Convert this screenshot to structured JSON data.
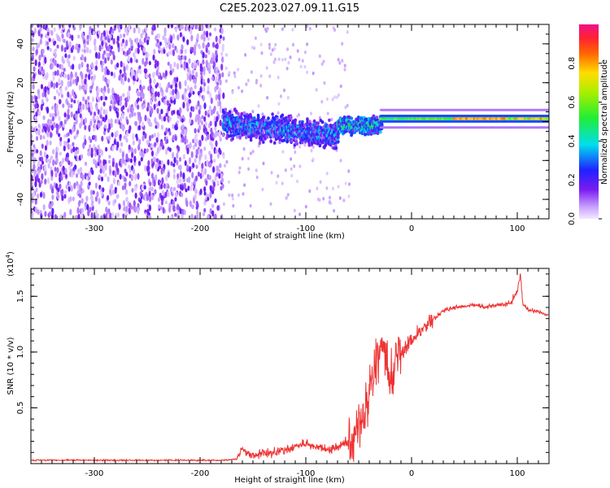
{
  "title": "C2E5.2023.027.09.11.G15",
  "colors": {
    "snr_line": "#ee3333",
    "spec_low": "#f0e2ff",
    "spec_mid": "#7a1cf0",
    "spec_high": "#ff3333"
  },
  "colorbar": {
    "label": "Normalized spectral amplitude",
    "ticks": [
      "0.0",
      "0.2",
      "0.4",
      "0.6",
      "0.8"
    ],
    "tick_values": [
      0.0,
      0.2,
      0.4,
      0.6,
      0.8
    ],
    "range": [
      0,
      1
    ],
    "colormap": "rainbow (violet → blue → cyan → green → yellow → red → pink)"
  },
  "chart_data": [
    {
      "type": "heatmap",
      "xlabel": "Height of straight line (km)",
      "ylabel": "Frequency (Hz)",
      "xlim": [
        -360,
        130
      ],
      "ylim": [
        -50,
        50
      ],
      "xticks": [
        -300,
        -200,
        -100,
        0,
        100
      ],
      "xtick_labels": [
        "-300",
        "-200",
        "-100",
        "0",
        "100"
      ],
      "yticks": [
        -40,
        -20,
        0,
        20,
        40
      ],
      "ytick_labels": [
        "-40",
        "-20",
        "0",
        "20",
        "40"
      ],
      "grid": false,
      "regions": [
        {
          "x": [
            -360,
            -178
          ],
          "freq_range": [
            -50,
            50
          ],
          "amplitude": "low (scattered noise)"
        },
        {
          "x": [
            -178,
            -70
          ],
          "freq_center": -4,
          "freq_halfwidth": 8,
          "amplitude": "medium (0.2-0.45)"
        },
        {
          "x": [
            -70,
            -28
          ],
          "freq_center": -2,
          "freq_halfwidth": 6,
          "amplitude": "medium-high"
        },
        {
          "x": [
            -28,
            130
          ],
          "freq_center": 1.5,
          "freq_halfwidth": 2,
          "amplitude": "high (0.5-0.9)"
        }
      ]
    },
    {
      "type": "line",
      "xlabel": "Height of straight line (km)",
      "ylabel": "SNR (10 * v/v)",
      "y_multiplier_label": "(x10",
      "y_multiplier_exp": "4",
      "y_multiplier_close": ")",
      "xlim": [
        -360,
        130
      ],
      "ylim": [
        0,
        1.75
      ],
      "xticks": [
        -300,
        -200,
        -100,
        0,
        100
      ],
      "xtick_labels": [
        "-300",
        "-200",
        "-100",
        "0",
        "100"
      ],
      "yticks": [
        0.5,
        1.0,
        1.5
      ],
      "ytick_labels": [
        "0.5",
        "1.0",
        "1.5"
      ],
      "grid": false,
      "series": [
        {
          "x": [
            -360,
            -300,
            -250,
            -200,
            -180,
            -165,
            -160,
            -155,
            -150,
            -130,
            -110,
            -100,
            -80,
            -70,
            -60,
            -50,
            -45,
            -40,
            -35,
            -30,
            -25,
            -20,
            -15,
            -10,
            -5,
            0,
            5,
            10,
            15,
            20,
            25,
            30,
            40,
            50,
            60,
            70,
            80,
            90,
            95,
            100,
            103,
            105,
            110,
            120,
            130
          ],
          "y": [
            0.03,
            0.03,
            0.03,
            0.03,
            0.03,
            0.04,
            0.15,
            0.08,
            0.08,
            0.1,
            0.15,
            0.18,
            0.12,
            0.15,
            0.2,
            0.3,
            0.45,
            0.6,
            0.9,
            1.05,
            1.0,
            0.7,
            0.9,
            1.0,
            1.05,
            1.1,
            1.15,
            1.2,
            1.25,
            1.28,
            1.33,
            1.37,
            1.4,
            1.41,
            1.42,
            1.4,
            1.42,
            1.43,
            1.45,
            1.55,
            1.7,
            1.45,
            1.38,
            1.36,
            1.33
          ]
        }
      ]
    }
  ]
}
